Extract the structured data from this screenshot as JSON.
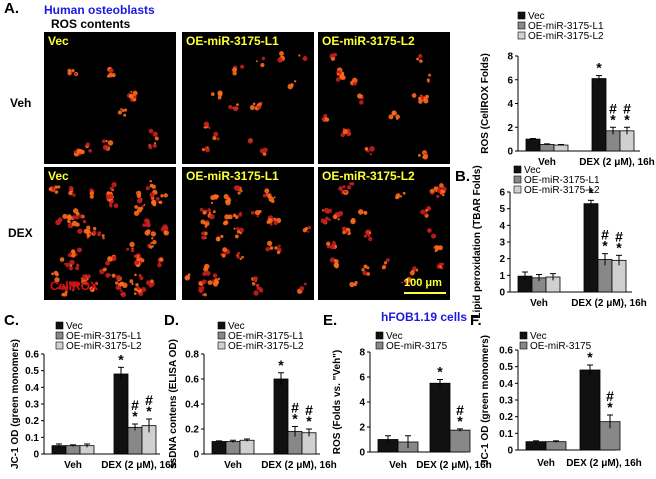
{
  "panel_A": {
    "label": "A.",
    "cell_title": "Human osteoblasts",
    "subtitle": "ROS contents",
    "col_titles": [
      "Vec",
      "OE-miR-3175-L1",
      "OE-miR-3175-L2"
    ],
    "row_labels": [
      "Veh",
      "DEX"
    ],
    "stain_label": "CellROX",
    "scale_label": "100 μm"
  },
  "panel_labels": {
    "B": "B.",
    "C": "C.",
    "D": "D.",
    "E": "E.",
    "F": "F."
  },
  "panel_E_title": "hFOB1.19 cells",
  "colors": {
    "vec": "#111111",
    "l1": "#888888",
    "l2": "#d0d0d0",
    "blue": "#1a1ae0",
    "stain": "#dd1111",
    "scale": "#ffff33"
  },
  "chart_data": [
    {
      "id": "A_bar",
      "type": "bar",
      "categories": [
        "Veh",
        "DEX (2 μM), 16h"
      ],
      "series": [
        {
          "name": "Vec",
          "values": [
            1.0,
            6.1
          ],
          "err": [
            0.05,
            0.25
          ],
          "marks": [
            "",
            "*"
          ]
        },
        {
          "name": "OE-miR-3175-L1",
          "values": [
            0.55,
            1.7
          ],
          "err": [
            0.05,
            0.3
          ],
          "marks": [
            "",
            "#\n*"
          ]
        },
        {
          "name": "OE-miR-3175-L2",
          "values": [
            0.5,
            1.7
          ],
          "err": [
            0.05,
            0.3
          ],
          "marks": [
            "",
            "#\n*"
          ]
        }
      ],
      "ylabel": "ROS (CellROX Folds)",
      "ylim": [
        0,
        8
      ],
      "yticks": [
        0,
        2,
        4,
        6,
        8
      ]
    },
    {
      "id": "B",
      "type": "bar",
      "categories": [
        "Veh",
        "DEX (2 μM), 16h"
      ],
      "series": [
        {
          "name": "Vec",
          "values": [
            0.95,
            5.3
          ],
          "err": [
            0.25,
            0.2
          ],
          "marks": [
            "",
            "*"
          ]
        },
        {
          "name": "OE-miR-3175-L1",
          "values": [
            0.85,
            1.95
          ],
          "err": [
            0.2,
            0.35
          ],
          "marks": [
            "",
            "#\n*"
          ]
        },
        {
          "name": "OE-miR-3175-L2",
          "values": [
            0.9,
            1.9
          ],
          "err": [
            0.2,
            0.3
          ],
          "marks": [
            "",
            "#\n*"
          ]
        }
      ],
      "ylabel": "Lipid peroxidation (TBAR Folds)",
      "ylim": [
        0,
        6
      ],
      "yticks": [
        0,
        1,
        2,
        3,
        4,
        5,
        6
      ]
    },
    {
      "id": "C",
      "type": "bar",
      "categories": [
        "Veh",
        "DEX (2 μM), 16h"
      ],
      "series": [
        {
          "name": "Vec",
          "values": [
            0.05,
            0.48
          ],
          "err": [
            0.01,
            0.04
          ],
          "marks": [
            "",
            "*"
          ]
        },
        {
          "name": "OE-miR-3175-L1",
          "values": [
            0.05,
            0.16
          ],
          "err": [
            0.005,
            0.02
          ],
          "marks": [
            "",
            "#\n*"
          ]
        },
        {
          "name": "OE-miR-3175-L2",
          "values": [
            0.05,
            0.17
          ],
          "err": [
            0.01,
            0.04
          ],
          "marks": [
            "",
            "#\n*"
          ]
        }
      ],
      "ylabel": "JC-1 OD (green monomers)",
      "ylim": [
        0,
        0.6
      ],
      "yticks": [
        0,
        0.1,
        0.2,
        0.3,
        0.4,
        0.5,
        0.6
      ]
    },
    {
      "id": "D",
      "type": "bar",
      "categories": [
        "Veh",
        "DEX (2 μM), 16h"
      ],
      "series": [
        {
          "name": "Vec",
          "values": [
            0.1,
            0.6
          ],
          "err": [
            0.005,
            0.05
          ],
          "marks": [
            "",
            "*"
          ]
        },
        {
          "name": "OE-miR-3175-L1",
          "values": [
            0.1,
            0.18
          ],
          "err": [
            0.01,
            0.04
          ],
          "marks": [
            "",
            "#\n*"
          ]
        },
        {
          "name": "OE-miR-3175-L2",
          "values": [
            0.11,
            0.17
          ],
          "err": [
            0.01,
            0.03
          ],
          "marks": [
            "",
            "#\n*"
          ]
        }
      ],
      "ylabel": "ssDNA contens (ELISA OD)",
      "ylim": [
        0,
        0.8
      ],
      "yticks": [
        0,
        0.2,
        0.4,
        0.6,
        0.8
      ]
    },
    {
      "id": "E",
      "type": "bar",
      "categories": [
        "Veh",
        "DEX (2 μM), 16h"
      ],
      "series": [
        {
          "name": "Vec",
          "values": [
            1.0,
            5.5
          ],
          "err": [
            0.3,
            0.3
          ],
          "marks": [
            "",
            "*"
          ]
        },
        {
          "name": "OE-miR-3175",
          "values": [
            0.8,
            1.75
          ],
          "err": [
            0.5,
            0.1
          ],
          "marks": [
            "",
            "#\n*"
          ]
        }
      ],
      "ylabel": "ROS (Folds vs. \"Veh\")",
      "ylim": [
        0,
        8
      ],
      "yticks": [
        0,
        2,
        4,
        6,
        8
      ]
    },
    {
      "id": "F",
      "type": "bar",
      "categories": [
        "Veh",
        "DEX (2 μM), 16h"
      ],
      "series": [
        {
          "name": "Vec",
          "values": [
            0.05,
            0.48
          ],
          "err": [
            0.005,
            0.03
          ],
          "marks": [
            "",
            "*"
          ]
        },
        {
          "name": "OE-miR-3175",
          "values": [
            0.05,
            0.17
          ],
          "err": [
            0.005,
            0.04
          ],
          "marks": [
            "",
            "#\n*"
          ]
        }
      ],
      "ylabel": "JC-1 OD (green monomers)",
      "ylim": [
        0,
        0.6
      ],
      "yticks": [
        0,
        0.1,
        0.2,
        0.3,
        0.4,
        0.5,
        0.6
      ]
    }
  ]
}
